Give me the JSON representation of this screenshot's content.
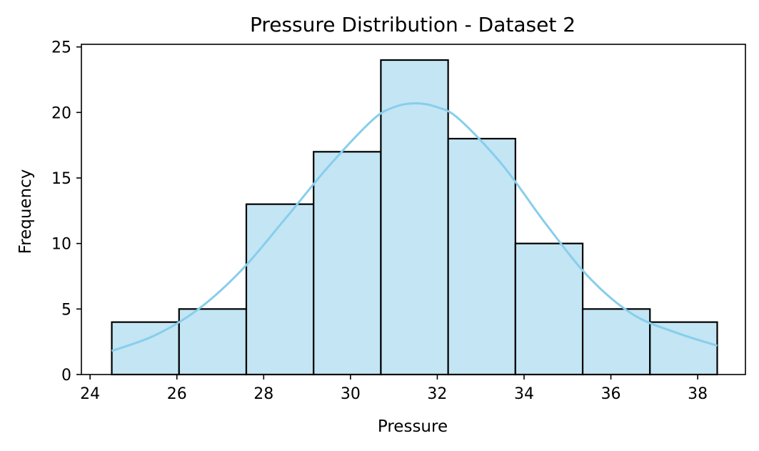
{
  "chart_data": {
    "type": "bar",
    "title": "Pressure Distribution - Dataset 2",
    "xlabel": "Pressure",
    "ylabel": "Frequency",
    "xlim": [
      23.8,
      39.1
    ],
    "ylim": [
      0,
      25.2
    ],
    "xticks": [
      24,
      26,
      28,
      30,
      32,
      34,
      36,
      38
    ],
    "yticks": [
      0,
      5,
      10,
      15,
      20,
      25
    ],
    "bins": [
      {
        "x0": 24.5,
        "x1": 26.05,
        "value": 4
      },
      {
        "x0": 26.05,
        "x1": 27.6,
        "value": 5
      },
      {
        "x0": 27.6,
        "x1": 29.15,
        "value": 13
      },
      {
        "x0": 29.15,
        "x1": 30.7,
        "value": 17
      },
      {
        "x0": 30.7,
        "x1": 32.25,
        "value": 24
      },
      {
        "x0": 32.25,
        "x1": 33.8,
        "value": 18
      },
      {
        "x0": 33.8,
        "x1": 35.35,
        "value": 10
      },
      {
        "x0": 35.35,
        "x1": 36.9,
        "value": 5
      },
      {
        "x0": 36.9,
        "x1": 38.45,
        "value": 4
      }
    ],
    "kde": {
      "x": [
        24.5,
        25.5,
        26.5,
        27.5,
        28.5,
        29.5,
        30.5,
        31.0,
        31.5,
        32.0,
        32.5,
        33.5,
        34.5,
        35.5,
        36.5,
        37.5,
        38.45
      ],
      "y": [
        1.8,
        3.0,
        5.0,
        8.0,
        11.9,
        15.9,
        19.4,
        20.4,
        20.7,
        20.4,
        19.5,
        16.0,
        11.5,
        7.4,
        4.6,
        3.2,
        2.2
      ]
    },
    "grid": false,
    "colors": {
      "bar_fill": "#c3e5f4",
      "bar_edge": "#000000",
      "kde_line": "#87ceeb",
      "axis": "#000000"
    }
  }
}
